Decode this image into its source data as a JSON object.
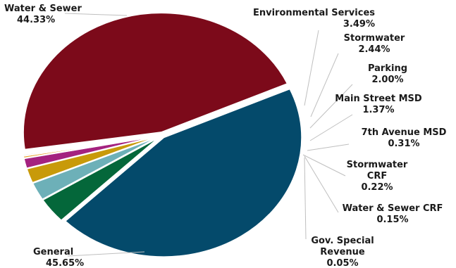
{
  "chart_data": {
    "type": "pie",
    "slices": [
      {
        "name": "Water & Sewer",
        "value": 44.33,
        "label": "44.33%",
        "color": "#044a6b"
      },
      {
        "name": "Environmental Services",
        "value": 3.49,
        "label": "3.49%",
        "color": "#04673a"
      },
      {
        "name": "Stormwater",
        "value": 2.44,
        "label": "2.44%",
        "color": "#6db0b8"
      },
      {
        "name": "Parking",
        "value": 2.0,
        "label": "2.00%",
        "color": "#c89a0a"
      },
      {
        "name": "Main Street MSD",
        "value": 1.37,
        "label": "1.37%",
        "color": "#a4227f"
      },
      {
        "name": "7th Avenue MSD",
        "value": 0.31,
        "label": "0.31%",
        "color": "#e6a02a"
      },
      {
        "name": "Stormwater CRF",
        "value": 0.22,
        "label": "0.22%",
        "color": "#d9d9d9"
      },
      {
        "name": "Water & Sewer CRF",
        "value": 0.15,
        "label": "0.15%",
        "color": "#6b4f86"
      },
      {
        "name": "Gov. Special Revenue",
        "value": 0.05,
        "label": "0.05%",
        "color": "#3f6f8f"
      },
      {
        "name": "General",
        "value": 45.65,
        "label": "45.65%",
        "color": "#7c0a1a"
      }
    ],
    "legend": "none"
  }
}
